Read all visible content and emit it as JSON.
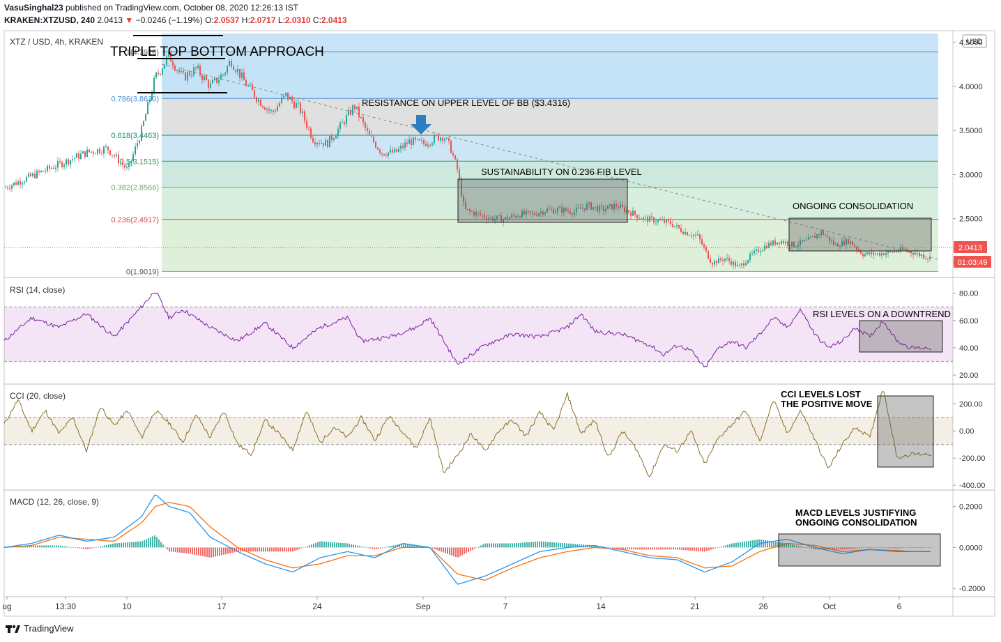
{
  "header": {
    "publisher": "VasuSinghal23",
    "published_text": "published on TradingView.com, October 08, 2020 12:26:13 IST",
    "symbol": "KRAKEN:XTZUSD, 240",
    "last": "2.0413",
    "change": "−0.0246 (−1.19%)",
    "o_label": "O:",
    "o": "2.0537",
    "h_label": "H:",
    "h": "2.0717",
    "l_label": "L:",
    "l": "2.0310",
    "c_label": "C:",
    "c": "2.0413"
  },
  "footer": {
    "brand": "TradingView"
  },
  "colors": {
    "up": "#26a69a",
    "down": "#ef5350",
    "rsi": "#7b1fa2",
    "cci": "#8a6d2a",
    "macd": "#2196f3",
    "signal": "#ff6d00",
    "price_tag": "#ef5350"
  },
  "chart_data": [
    {
      "type": "candlestick",
      "title": "XTZ / USD, 4h, KRAKEN",
      "currency": "USD",
      "ylim": [
        1.85,
        4.6
      ],
      "y_ticks": [
        "4.5000",
        "4.0000",
        "3.5000",
        "3.0000",
        "2.5000",
        "2.0000"
      ],
      "x_ticks": [
        "ug",
        "13:30",
        "10",
        "17",
        "24",
        "Sep",
        "7",
        "14",
        "21",
        "26",
        "Oct",
        "6"
      ],
      "last_price": "2.0413",
      "countdown": "01:03:49",
      "close_path": [
        [
          0,
          2.85
        ],
        [
          3,
          2.95
        ],
        [
          6,
          3.05
        ],
        [
          9,
          3.15
        ],
        [
          12,
          3.25
        ],
        [
          15,
          3.3
        ],
        [
          18,
          3.05
        ],
        [
          20,
          3.5
        ],
        [
          22,
          4.1
        ],
        [
          24,
          4.35
        ],
        [
          26,
          4.1
        ],
        [
          28,
          4.2
        ],
        [
          30,
          4.0
        ],
        [
          32,
          4.15
        ],
        [
          33,
          4.3
        ],
        [
          35,
          4.05
        ],
        [
          37,
          3.85
        ],
        [
          39,
          3.7
        ],
        [
          41,
          3.9
        ],
        [
          43,
          3.75
        ],
        [
          45,
          3.4
        ],
        [
          47,
          3.35
        ],
        [
          49,
          3.55
        ],
        [
          51,
          3.78
        ],
        [
          53,
          3.45
        ],
        [
          55,
          3.25
        ],
        [
          57,
          3.25
        ],
        [
          59,
          3.38
        ],
        [
          61,
          3.35
        ],
        [
          63,
          3.42
        ],
        [
          64,
          3.44
        ],
        [
          65,
          3.3
        ],
        [
          66,
          3.05
        ],
        [
          67,
          2.6
        ],
        [
          69,
          2.55
        ],
        [
          71,
          2.5
        ],
        [
          73,
          2.5
        ],
        [
          75,
          2.55
        ],
        [
          77,
          2.55
        ],
        [
          79,
          2.6
        ],
        [
          81,
          2.6
        ],
        [
          83,
          2.58
        ],
        [
          85,
          2.65
        ],
        [
          87,
          2.6
        ],
        [
          89,
          2.65
        ],
        [
          91,
          2.58
        ],
        [
          93,
          2.5
        ],
        [
          95,
          2.48
        ],
        [
          97,
          2.45
        ],
        [
          99,
          2.35
        ],
        [
          101,
          2.3
        ],
        [
          103,
          2.0
        ],
        [
          105,
          2.05
        ],
        [
          107,
          1.95
        ],
        [
          109,
          2.1
        ],
        [
          111,
          2.2
        ],
        [
          113,
          2.25
        ],
        [
          115,
          2.2
        ],
        [
          117,
          2.25
        ],
        [
          119,
          2.35
        ],
        [
          121,
          2.2
        ],
        [
          123,
          2.25
        ],
        [
          125,
          2.1
        ],
        [
          127,
          2.1
        ],
        [
          129,
          2.12
        ],
        [
          131,
          2.15
        ],
        [
          133,
          2.1
        ],
        [
          135,
          2.05
        ]
      ],
      "x_domain": [
        0,
        136
      ],
      "fib_levels": [
        {
          "label": "1(4.3918)",
          "value": 4.3918
        },
        {
          "label": "0.786(3.8630)",
          "value": 3.863
        },
        {
          "label": "0.618(3.4463)",
          "value": 3.4463
        },
        {
          "label": "0.5(3.1515)",
          "value": 3.1515
        },
        {
          "label": "0.382(2.8566)",
          "value": 2.8566
        },
        {
          "label": "0.236(2.4917)",
          "value": 2.4917
        },
        {
          "label": "0(1.9019)",
          "value": 1.9019
        }
      ],
      "annotations": [
        "TRIPLE TOP BOTTOM APPROACH",
        "RESISTANCE ON UPPER LEVEL OF BB ($3.4316)",
        "SUSTAINABILITY ON 0.236 FIB LEVEL",
        "ONGOING CONSOLIDATION"
      ]
    },
    {
      "type": "line",
      "title": "RSI (14, close)",
      "ylim": [
        15,
        90
      ],
      "y_ticks": [
        "80.00",
        "60.00",
        "40.00",
        "20.00"
      ],
      "band": [
        30,
        70
      ],
      "path": [
        [
          0,
          45
        ],
        [
          4,
          62
        ],
        [
          8,
          55
        ],
        [
          12,
          65
        ],
        [
          16,
          48
        ],
        [
          20,
          70
        ],
        [
          22,
          82
        ],
        [
          24,
          62
        ],
        [
          26,
          68
        ],
        [
          30,
          55
        ],
        [
          34,
          45
        ],
        [
          38,
          58
        ],
        [
          42,
          40
        ],
        [
          46,
          55
        ],
        [
          50,
          62
        ],
        [
          52,
          45
        ],
        [
          56,
          48
        ],
        [
          60,
          55
        ],
        [
          62,
          62
        ],
        [
          64,
          45
        ],
        [
          66,
          28
        ],
        [
          68,
          35
        ],
        [
          70,
          42
        ],
        [
          74,
          50
        ],
        [
          78,
          48
        ],
        [
          82,
          55
        ],
        [
          84,
          65
        ],
        [
          86,
          52
        ],
        [
          90,
          50
        ],
        [
          94,
          42
        ],
        [
          96,
          35
        ],
        [
          98,
          42
        ],
        [
          100,
          38
        ],
        [
          102,
          25
        ],
        [
          104,
          40
        ],
        [
          106,
          45
        ],
        [
          108,
          40
        ],
        [
          110,
          50
        ],
        [
          112,
          62
        ],
        [
          114,
          55
        ],
        [
          116,
          68
        ],
        [
          118,
          50
        ],
        [
          120,
          40
        ],
        [
          122,
          45
        ],
        [
          124,
          55
        ],
        [
          126,
          48
        ],
        [
          128,
          60
        ],
        [
          130,
          45
        ],
        [
          132,
          40
        ]
      ],
      "annotation": "RSI LEVELS ON A DOWNTREND"
    },
    {
      "type": "line",
      "title": "CCI (20, close)",
      "ylim": [
        -420,
        330
      ],
      "y_ticks": [
        "200.00",
        "0.00",
        "-200.00",
        "-400.00"
      ],
      "band": [
        -100,
        100
      ],
      "path": [
        [
          0,
          50
        ],
        [
          2,
          230
        ],
        [
          4,
          0
        ],
        [
          6,
          150
        ],
        [
          8,
          -20
        ],
        [
          10,
          100
        ],
        [
          12,
          -150
        ],
        [
          14,
          180
        ],
        [
          16,
          40
        ],
        [
          18,
          150
        ],
        [
          20,
          -50
        ],
        [
          22,
          150
        ],
        [
          24,
          60
        ],
        [
          26,
          -80
        ],
        [
          28,
          120
        ],
        [
          30,
          -50
        ],
        [
          32,
          150
        ],
        [
          34,
          -100
        ],
        [
          36,
          -170
        ],
        [
          38,
          80
        ],
        [
          40,
          -20
        ],
        [
          42,
          -140
        ],
        [
          44,
          150
        ],
        [
          46,
          -90
        ],
        [
          48,
          30
        ],
        [
          50,
          -50
        ],
        [
          52,
          100
        ],
        [
          54,
          -70
        ],
        [
          56,
          110
        ],
        [
          58,
          0
        ],
        [
          60,
          -130
        ],
        [
          62,
          100
        ],
        [
          64,
          -310
        ],
        [
          66,
          -180
        ],
        [
          68,
          -20
        ],
        [
          70,
          -150
        ],
        [
          72,
          0
        ],
        [
          74,
          80
        ],
        [
          76,
          -40
        ],
        [
          78,
          140
        ],
        [
          80,
          0
        ],
        [
          82,
          270
        ],
        [
          84,
          -20
        ],
        [
          86,
          80
        ],
        [
          88,
          -200
        ],
        [
          90,
          0
        ],
        [
          92,
          -130
        ],
        [
          94,
          -340
        ],
        [
          96,
          -100
        ],
        [
          98,
          -150
        ],
        [
          100,
          0
        ],
        [
          102,
          -250
        ],
        [
          104,
          -50
        ],
        [
          106,
          50
        ],
        [
          108,
          150
        ],
        [
          110,
          -80
        ],
        [
          112,
          230
        ],
        [
          114,
          -20
        ],
        [
          116,
          150
        ],
        [
          118,
          -60
        ],
        [
          120,
          -280
        ],
        [
          122,
          -100
        ],
        [
          124,
          30
        ],
        [
          126,
          -50
        ],
        [
          128,
          320
        ],
        [
          130,
          -200
        ],
        [
          132,
          -170
        ]
      ],
      "annotation": "CCI LEVELS LOST THE POSITIVE MOVE"
    },
    {
      "type": "line",
      "title": "MACD (12, 26, close, 9)",
      "ylim": [
        -0.23,
        0.27
      ],
      "y_ticks": [
        "0.2000",
        "0.0000",
        "-0.2000"
      ],
      "macd": [
        [
          0,
          0.0
        ],
        [
          4,
          0.02
        ],
        [
          8,
          0.06
        ],
        [
          12,
          0.03
        ],
        [
          16,
          0.05
        ],
        [
          20,
          0.15
        ],
        [
          22,
          0.26
        ],
        [
          24,
          0.2
        ],
        [
          27,
          0.17
        ],
        [
          30,
          0.05
        ],
        [
          34,
          -0.02
        ],
        [
          38,
          -0.08
        ],
        [
          42,
          -0.12
        ],
        [
          46,
          -0.05
        ],
        [
          50,
          -0.02
        ],
        [
          54,
          -0.05
        ],
        [
          58,
          0.02
        ],
        [
          62,
          0.0
        ],
        [
          66,
          -0.18
        ],
        [
          70,
          -0.14
        ],
        [
          74,
          -0.08
        ],
        [
          78,
          -0.02
        ],
        [
          82,
          0.0
        ],
        [
          86,
          0.01
        ],
        [
          90,
          -0.02
        ],
        [
          94,
          -0.05
        ],
        [
          98,
          -0.06
        ],
        [
          102,
          -0.12
        ],
        [
          106,
          -0.07
        ],
        [
          110,
          0.02
        ],
        [
          114,
          0.04
        ],
        [
          118,
          0.0
        ],
        [
          122,
          -0.03
        ],
        [
          126,
          -0.01
        ],
        [
          130,
          -0.02
        ],
        [
          132,
          -0.02
        ]
      ],
      "signal": [
        [
          0,
          0.0
        ],
        [
          4,
          0.01
        ],
        [
          8,
          0.05
        ],
        [
          12,
          0.04
        ],
        [
          16,
          0.03
        ],
        [
          20,
          0.12
        ],
        [
          22,
          0.2
        ],
        [
          24,
          0.22
        ],
        [
          27,
          0.2
        ],
        [
          30,
          0.1
        ],
        [
          34,
          0.0
        ],
        [
          38,
          -0.06
        ],
        [
          42,
          -0.1
        ],
        [
          46,
          -0.08
        ],
        [
          50,
          -0.04
        ],
        [
          54,
          -0.04
        ],
        [
          58,
          0.0
        ],
        [
          62,
          0.0
        ],
        [
          66,
          -0.13
        ],
        [
          70,
          -0.16
        ],
        [
          74,
          -0.1
        ],
        [
          78,
          -0.05
        ],
        [
          82,
          -0.02
        ],
        [
          86,
          0.0
        ],
        [
          90,
          -0.01
        ],
        [
          94,
          -0.04
        ],
        [
          98,
          -0.05
        ],
        [
          102,
          -0.1
        ],
        [
          106,
          -0.09
        ],
        [
          110,
          -0.02
        ],
        [
          114,
          0.02
        ],
        [
          118,
          0.01
        ],
        [
          122,
          -0.02
        ],
        [
          126,
          -0.01
        ],
        [
          130,
          -0.015
        ],
        [
          132,
          -0.02
        ]
      ],
      "annotation": "MACD LEVELS JUSTIFYING ONGOING CONSOLIDATION"
    }
  ]
}
